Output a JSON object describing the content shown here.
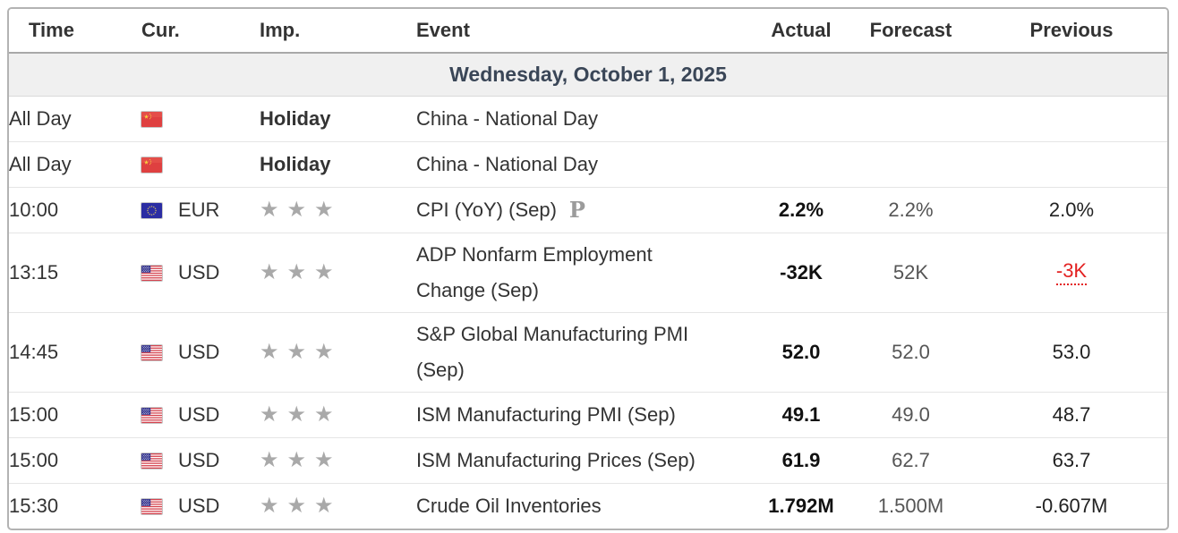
{
  "table": {
    "columns": [
      {
        "label": "Time"
      },
      {
        "label": "Cur."
      },
      {
        "label": "Imp."
      },
      {
        "label": "Event"
      },
      {
        "label": "Actual"
      },
      {
        "label": "Forecast"
      },
      {
        "label": "Previous"
      }
    ],
    "date_header": "Wednesday, October 1, 2025",
    "rows": [
      {
        "time": "All Day",
        "flag": "cn",
        "currency": "",
        "importance": "Holiday",
        "stars": 0,
        "event": "China - National Day",
        "preliminary": "",
        "actual": "",
        "actual_style": "",
        "forecast": "",
        "previous": "",
        "previous_revised": false
      },
      {
        "time": "All Day",
        "flag": "cn",
        "currency": "",
        "importance": "Holiday",
        "stars": 0,
        "event": "China - National Day",
        "preliminary": "",
        "actual": "",
        "actual_style": "",
        "forecast": "",
        "previous": "",
        "previous_revised": false
      },
      {
        "time": "10:00",
        "flag": "eu",
        "currency": "EUR",
        "importance": "",
        "stars": 3,
        "event": "CPI (YoY) (Sep)",
        "preliminary": "P",
        "actual": "2.2%",
        "actual_style": "bold",
        "forecast": "2.2%",
        "previous": "2.0%",
        "previous_revised": false
      },
      {
        "time": "13:15",
        "flag": "us",
        "currency": "USD",
        "importance": "",
        "stars": 3,
        "event": "ADP Nonfarm Employment Change (Sep)",
        "preliminary": "",
        "actual": "-32K",
        "actual_style": "red",
        "forecast": "52K",
        "previous": "-3K",
        "previous_revised": true
      },
      {
        "time": "14:45",
        "flag": "us",
        "currency": "USD",
        "importance": "",
        "stars": 3,
        "event": "S&P Global Manufacturing PMI (Sep)",
        "preliminary": "",
        "actual": "52.0",
        "actual_style": "bold",
        "forecast": "52.0",
        "previous": "53.0",
        "previous_revised": false
      },
      {
        "time": "15:00",
        "flag": "us",
        "currency": "USD",
        "importance": "",
        "stars": 3,
        "event": "ISM Manufacturing PMI (Sep)",
        "preliminary": "",
        "actual": "49.1",
        "actual_style": "green",
        "forecast": "49.0",
        "previous": "48.7",
        "previous_revised": false
      },
      {
        "time": "15:00",
        "flag": "us",
        "currency": "USD",
        "importance": "",
        "stars": 3,
        "event": "ISM Manufacturing Prices (Sep)",
        "preliminary": "",
        "actual": "61.9",
        "actual_style": "red",
        "forecast": "62.7",
        "previous": "63.7",
        "previous_revised": false
      },
      {
        "time": "15:30",
        "flag": "us",
        "currency": "USD",
        "importance": "",
        "stars": 3,
        "event": "Crude Oil Inventories",
        "preliminary": "",
        "actual": "1.792M",
        "actual_style": "red",
        "forecast": "1.500M",
        "previous": "-0.607M",
        "previous_revised": false
      }
    ]
  },
  "icons": {
    "flags": {
      "cn": "china-flag-icon",
      "eu": "eu-flag-icon",
      "us": "us-flag-icon"
    },
    "star": "star-icon",
    "preliminary": "preliminary-icon"
  },
  "colors": {
    "negative_red": "#e32222",
    "positive_green": "#1d9726",
    "date_text": "#3a4657",
    "date_bg": "#f0f0f0",
    "star_gray": "#a9a9a9",
    "text": "#333333"
  }
}
